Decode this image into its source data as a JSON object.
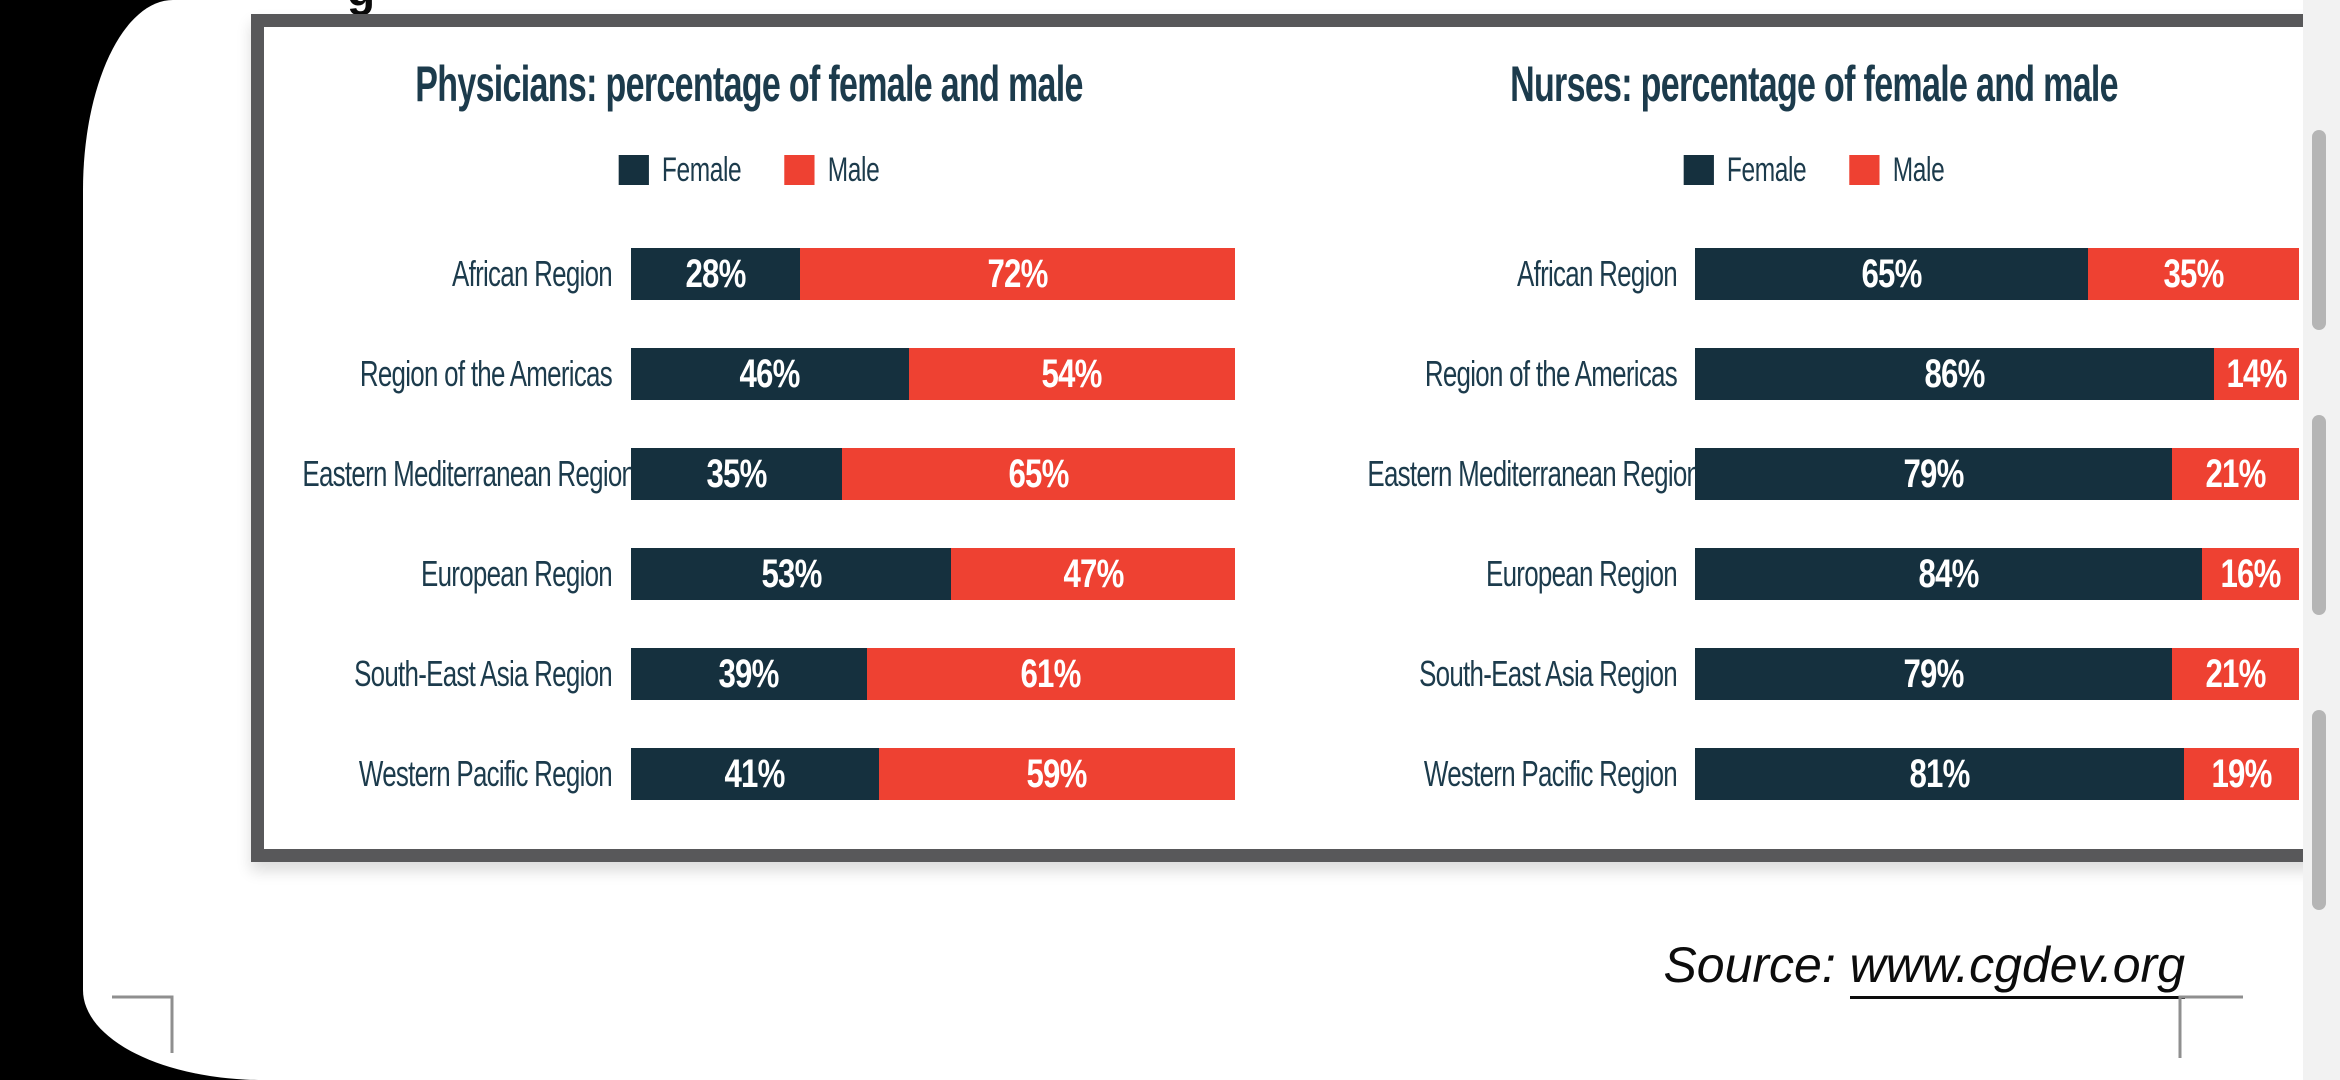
{
  "page": {
    "cropped_fragment": "g",
    "source": {
      "prefix": "Source:",
      "link": "www.cgdev.org"
    }
  },
  "colors": {
    "female": "#15303E",
    "male": "#EE4132",
    "ink": "#1C3B4C"
  },
  "chart_data": [
    {
      "type": "bar",
      "orientation": "horizontal-stacked",
      "title": "Physicians: percentage of female and male",
      "legend": {
        "female": "Female",
        "male": "Male"
      },
      "unit": "%",
      "xlim": [
        0,
        100
      ],
      "categories": [
        "African Region",
        "Region of the Americas",
        "Eastern Mediterranean Region",
        "European Region",
        "South-East Asia Region",
        "Western Pacific Region"
      ],
      "series": [
        {
          "name": "Female",
          "values": [
            28,
            46,
            35,
            53,
            39,
            41
          ]
        },
        {
          "name": "Male",
          "values": [
            72,
            54,
            65,
            47,
            61,
            59
          ]
        }
      ]
    },
    {
      "type": "bar",
      "orientation": "horizontal-stacked",
      "title": "Nurses: percentage of female and male",
      "legend": {
        "female": "Female",
        "male": "Male"
      },
      "unit": "%",
      "xlim": [
        0,
        100
      ],
      "categories": [
        "African Region",
        "Region of the Americas",
        "Eastern Mediterranean Region",
        "European Region",
        "South-East Asia Region",
        "Western Pacific Region"
      ],
      "series": [
        {
          "name": "Female",
          "values": [
            65,
            86,
            79,
            84,
            79,
            81
          ]
        },
        {
          "name": "Male",
          "values": [
            35,
            14,
            21,
            16,
            21,
            19
          ]
        }
      ]
    }
  ]
}
